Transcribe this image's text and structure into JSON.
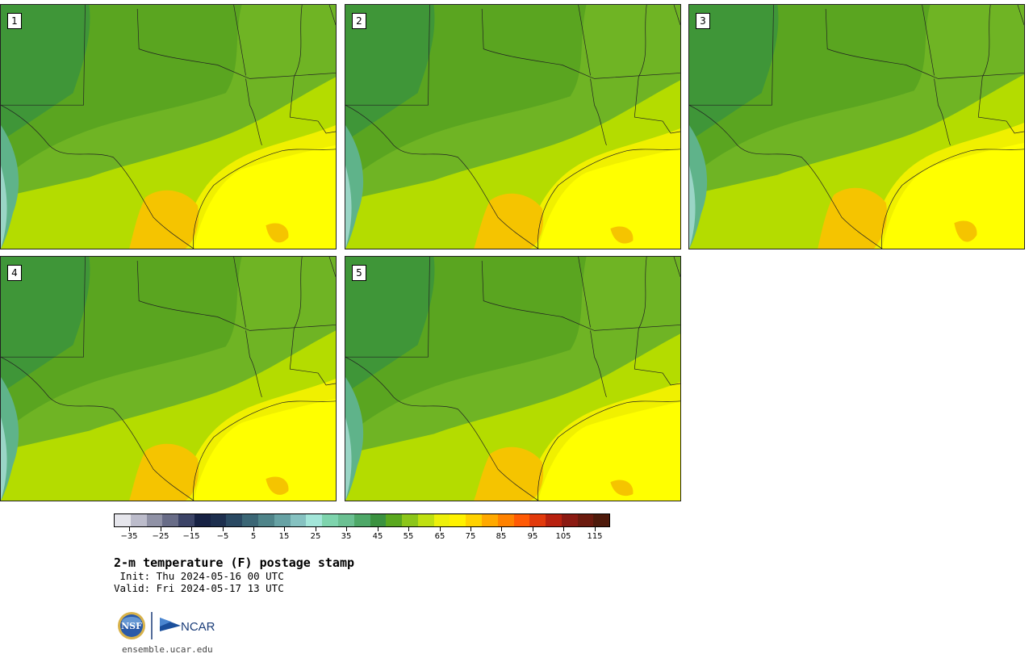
{
  "panels": [
    {
      "label": "1"
    },
    {
      "label": "2"
    },
    {
      "label": "3"
    },
    {
      "label": "4"
    },
    {
      "label": "5"
    }
  ],
  "colorbar": {
    "colors": [
      "#e6e6ec",
      "#bcbccb",
      "#9092a6",
      "#686c87",
      "#3c4467",
      "#172244",
      "#1d2f4e",
      "#2a4962",
      "#3b6675",
      "#4f8489",
      "#67a2a4",
      "#86c2c1",
      "#a3e6d9",
      "#7ed4ad",
      "#6bc092",
      "#4ea868",
      "#3b9240",
      "#5aa81f",
      "#8cc61a",
      "#bfe011",
      "#edf00a",
      "#fff200",
      "#ffd200",
      "#ffa900",
      "#ff8200",
      "#ff5a05",
      "#e23a0c",
      "#b8210f",
      "#8b1a12",
      "#6b1a0e",
      "#4e1a0b"
    ],
    "tick_labels": [
      "−35",
      "−25",
      "−15",
      "−5",
      "5",
      "15",
      "25",
      "35",
      "45",
      "55",
      "65",
      "75",
      "85",
      "95",
      "105",
      "115"
    ],
    "unit_start": -40,
    "unit_end": 120
  },
  "title": "2-m temperature (F) postage stamp",
  "init": " Init: Thu 2024-05-16 00 UTC",
  "valid": "Valid: Fri 2024-05-17 13 UTC",
  "logos": {
    "nsf": "NSF",
    "ncar": "NCAR"
  },
  "site": "ensemble.ucar.edu"
}
